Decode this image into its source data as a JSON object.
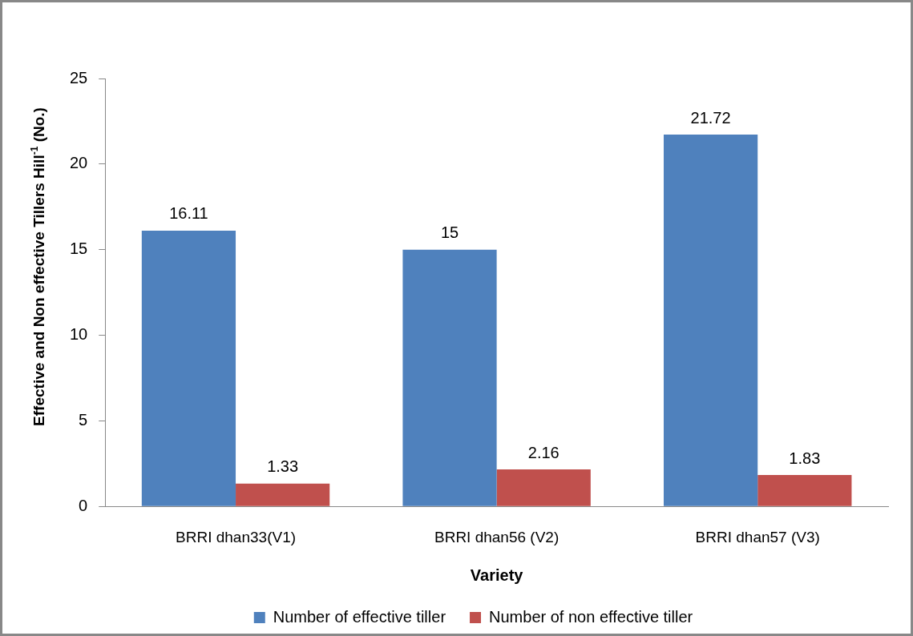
{
  "chart_data": {
    "type": "bar",
    "xlabel": "Variety",
    "ylabel": "Effective  and Non effective Tillers Hill$^{-1}$ (No.)",
    "categories": [
      "BRRI dhan33(V1)",
      "BRRI dhan56 (V2)",
      "BRRI dhan57 (V3)"
    ],
    "series": [
      {
        "name": "Number of effective tiller",
        "color": "#4f81bd",
        "values": [
          16.11,
          15,
          21.72
        ]
      },
      {
        "name": "Number of non effective tiller",
        "color": "#c0504d",
        "values": [
          1.33,
          2.16,
          1.83
        ]
      }
    ],
    "ylim": [
      0,
      25
    ],
    "yticks": [
      0,
      5,
      10,
      15,
      20,
      25
    ],
    "grid": false,
    "legend": "bottom",
    "data_labels": true
  }
}
